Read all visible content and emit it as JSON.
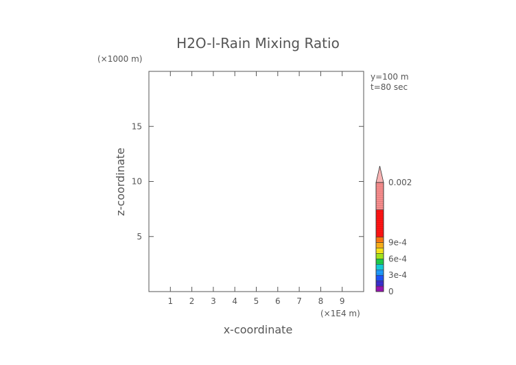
{
  "chart_data": {
    "type": "heatmap",
    "title": "H2O-l-Rain Mixing Ratio",
    "xlabel": "x-coordinate",
    "ylabel": "z-coordinate",
    "x_unit": "(×1E4 m)",
    "y_unit": "(×1000 m)",
    "xlim": [
      0,
      10
    ],
    "ylim": [
      0,
      20
    ],
    "x_ticks": [
      1,
      2,
      3,
      4,
      5,
      6,
      7,
      8,
      9
    ],
    "y_ticks": [
      5,
      10,
      15
    ],
    "annotations": [
      "y=100 m",
      "t=80 sec"
    ],
    "grid": false,
    "values": [],
    "colorbar": {
      "min": 0,
      "max": 0.002,
      "labels": [
        {
          "value": 0,
          "text": "0"
        },
        {
          "value": 0.0003,
          "text": "3e-4"
        },
        {
          "value": 0.0006,
          "text": "6e-4"
        },
        {
          "value": 0.0009,
          "text": "9e-4"
        },
        {
          "value": 0.002,
          "text": "0.002"
        }
      ],
      "bands": [
        {
          "from": 0,
          "to": 0.0001,
          "color": "#9b14b4"
        },
        {
          "from": 0.0001,
          "to": 0.0002,
          "color": "#3a2fd0"
        },
        {
          "from": 0.0002,
          "to": 0.0003,
          "color": "#1e55ff"
        },
        {
          "from": 0.0003,
          "to": 0.0004,
          "color": "#1e9cff"
        },
        {
          "from": 0.0004,
          "to": 0.0005,
          "color": "#14d2dc"
        },
        {
          "from": 0.0005,
          "to": 0.0006,
          "color": "#20d04a"
        },
        {
          "from": 0.0006,
          "to": 0.0007,
          "color": "#a8ea1c"
        },
        {
          "from": 0.0007,
          "to": 0.0008,
          "color": "#ffe81a"
        },
        {
          "from": 0.0008,
          "to": 0.0009,
          "color": "#ffb31a"
        },
        {
          "from": 0.0009,
          "to": 0.001,
          "color": "#ff7a12"
        },
        {
          "from": 0.001,
          "to": 0.0015,
          "color": "#ff1414"
        },
        {
          "from": 0.0015,
          "to": 0.002,
          "color": "#f78c8c"
        }
      ],
      "overflow_color": "#f7b3b3"
    }
  }
}
